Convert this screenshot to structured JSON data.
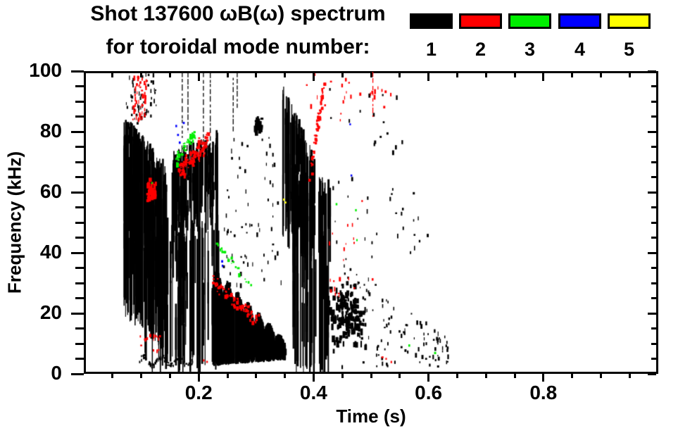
{
  "title": {
    "line1": "Shot 137600 ωB(ω) spectrum",
    "line2": "for toroidal mode number:"
  },
  "legend": {
    "entries": [
      {
        "label": "1",
        "color": "#000000"
      },
      {
        "label": "2",
        "color": "#ff0000"
      },
      {
        "label": "3",
        "color": "#00ee00"
      },
      {
        "label": "4",
        "color": "#0000ff"
      },
      {
        "label": "5",
        "color": "#ffff00"
      }
    ]
  },
  "axes": {
    "x": {
      "label": "Time (s)",
      "min": 0,
      "max": 1.0,
      "major_ticks": [
        0.2,
        0.4,
        0.6,
        0.8
      ],
      "major_labels": [
        "0.2",
        "0.4",
        "0.6",
        "0.8"
      ],
      "minor_step": 0.05
    },
    "y": {
      "label": "Frequency (kHz)",
      "min": 0,
      "max": 100,
      "major_ticks": [
        0,
        20,
        40,
        60,
        80,
        100
      ],
      "major_labels": [
        "0",
        "20",
        "40",
        "60",
        "80",
        "100"
      ],
      "minor_step": 5
    }
  },
  "chart_data": {
    "type": "scatter",
    "title": "Shot 137600 ωB(ω) spectrum for toroidal mode number",
    "xlabel": "Time (s)",
    "ylabel": "Frequency (kHz)",
    "xlim": [
      0,
      1.0
    ],
    "ylim": [
      0,
      100
    ],
    "grid": false,
    "legend_position": "top-right",
    "units": {
      "t": "s",
      "f": "kHz"
    },
    "series": [
      {
        "name": "toroidal mode n=1",
        "mode": 1,
        "color": "#000000",
        "clusters": [
          {
            "style": "vstripes",
            "t": [
              0.068,
              0.142
            ],
            "f_top": [
              82,
              66
            ],
            "f_bot": [
              22,
              10
            ],
            "n": 160
          },
          {
            "style": "vstripes",
            "t": [
              0.1,
              0.172
            ],
            "f_top": [
              52,
              46
            ],
            "f_bot": [
              2,
              2
            ],
            "n": 40
          },
          {
            "style": "specks",
            "t": [
              0.072,
              0.125
            ],
            "f": [
              83,
              100
            ],
            "n": 55
          },
          {
            "style": "vstripes",
            "t": [
              0.152,
              0.232
            ],
            "f_top": [
              70,
              77
            ],
            "f_bot": [
              46,
              52
            ],
            "n": 120
          },
          {
            "style": "vstripes",
            "t": [
              0.158,
              0.235
            ],
            "f_top": [
              46,
              50
            ],
            "f_bot": [
              1,
              3
            ],
            "n": 42
          },
          {
            "style": "vlines",
            "lines": [
              [
                0.17,
                78,
                100
              ],
              [
                0.18,
                80,
                100
              ],
              [
                0.207,
                75,
                100
              ],
              [
                0.219,
                72,
                100
              ],
              [
                0.259,
                80,
                98
              ],
              [
                0.266,
                88,
                100
              ]
            ]
          },
          {
            "style": "specks",
            "t": [
              0.235,
              0.345
            ],
            "f": [
              25,
              50
            ],
            "n": 40
          },
          {
            "style": "specks",
            "t": [
              0.24,
              0.35
            ],
            "f": [
              50,
              80
            ],
            "n": 30
          },
          {
            "style": "blob",
            "t": [
              0.294,
              0.31
            ],
            "f": [
              80,
              86
            ],
            "n": 22
          },
          {
            "style": "scallop",
            "t": [
              0.222,
              0.35
            ],
            "f_top": [
              28,
              8
            ],
            "f_bot": [
              3,
              5
            ],
            "bumps": 7,
            "n": 420
          },
          {
            "style": "vstripes",
            "t": [
              0.345,
              0.402
            ],
            "f_top": [
              93,
              68
            ],
            "f_bot": [
              46,
              40
            ],
            "n": 90
          },
          {
            "style": "vstripes",
            "t": [
              0.362,
              0.428
            ],
            "f_top": [
              66,
              60
            ],
            "f_bot": [
              1,
              2
            ],
            "n": 60
          },
          {
            "style": "blob",
            "t": [
              0.42,
              0.492
            ],
            "f": [
              7,
              31
            ],
            "n": 170
          },
          {
            "style": "specks",
            "t": [
              0.44,
              0.635
            ],
            "f": [
              2,
              40
            ],
            "n": 120,
            "decay": true
          },
          {
            "style": "specks",
            "t": [
              0.428,
              0.6
            ],
            "f": [
              38,
              66
            ],
            "n": 30
          },
          {
            "style": "specks",
            "t": [
              0.42,
              0.555
            ],
            "f": [
              66,
              96
            ],
            "n": 16
          },
          {
            "style": "squiggle",
            "t": [
              0.095,
              0.188
            ],
            "f": [
              2.5,
              5.5
            ],
            "n": 70
          }
        ]
      },
      {
        "name": "toroidal mode n=2",
        "mode": 2,
        "color": "#ff0000",
        "clusters": [
          {
            "style": "specks",
            "t": [
              0.083,
              0.108
            ],
            "f": [
              84,
              100
            ],
            "n": 50
          },
          {
            "style": "blob",
            "t": [
              0.103,
              0.124
            ],
            "f": [
              56,
              65
            ],
            "n": 40
          },
          {
            "style": "streak",
            "p1": [
              0.163,
              67
            ],
            "p2": [
              0.214,
              77.5
            ],
            "w": 4,
            "n": 110
          },
          {
            "style": "streak",
            "p1": [
              0.223,
              30.5
            ],
            "p2": [
              0.302,
              17.5
            ],
            "w": 2.5,
            "n": 80
          },
          {
            "style": "streak",
            "p1": [
              0.392,
              63
            ],
            "p2": [
              0.419,
              97
            ],
            "w": 2.5,
            "n": 60,
            "curve": 0.8
          },
          {
            "style": "specks",
            "t": [
              0.425,
              0.47
            ],
            "f": [
              25,
              50
            ],
            "n": 20
          },
          {
            "style": "specks",
            "t": [
              0.38,
              0.545
            ],
            "f": [
              84,
              100
            ],
            "n": 26
          },
          {
            "style": "vlines",
            "lines": [
              [
                0.503,
                85,
                100
              ]
            ]
          },
          {
            "style": "specks",
            "t": [
              0.094,
              0.137
            ],
            "f": [
              7.5,
              13
            ],
            "n": 16
          },
          {
            "style": "points",
            "pts": [
              [
                0.208,
                4
              ],
              [
                0.214,
                3.5
              ],
              [
                0.527,
                4.5
              ],
              [
                0.536,
                3.5
              ],
              [
                0.485,
                57
              ],
              [
                0.503,
                31
              ],
              [
                0.52,
                5
              ]
            ]
          }
        ]
      },
      {
        "name": "toroidal mode n=3",
        "mode": 3,
        "color": "#00ee00",
        "clusters": [
          {
            "style": "streak",
            "p1": [
              0.156,
              70
            ],
            "p2": [
              0.192,
              80
            ],
            "w": 2,
            "n": 45
          },
          {
            "style": "streak",
            "p1": [
              0.228,
              43
            ],
            "p2": [
              0.289,
              30
            ],
            "w": 1.5,
            "n": 20
          },
          {
            "style": "points",
            "pts": [
              [
                0.118,
                63
              ],
              [
                0.44,
                56
              ],
              [
                0.474,
                54
              ],
              [
                0.476,
                44
              ],
              [
                0.567,
                9
              ],
              [
                0.612,
                6.5
              ]
            ]
          }
        ]
      },
      {
        "name": "toroidal mode n=4",
        "mode": 4,
        "color": "#0000ff",
        "clusters": [
          {
            "style": "points",
            "pts": [
              [
                0.16,
                82
              ],
              [
                0.163,
                79
              ],
              [
                0.166,
                76.5
              ],
              [
                0.173,
                83
              ],
              [
                0.24,
                37
              ],
              [
                0.241,
                35.5
              ],
              [
                0.464,
                82.5
              ],
              [
                0.466,
                65.5
              ]
            ]
          }
        ]
      },
      {
        "name": "toroidal mode n=5",
        "mode": 5,
        "color": "#ffff00",
        "clusters": [
          {
            "style": "points",
            "pts": [
              [
                0.348,
                57.5
              ],
              [
                0.351,
                56.5
              ]
            ]
          }
        ]
      }
    ]
  }
}
